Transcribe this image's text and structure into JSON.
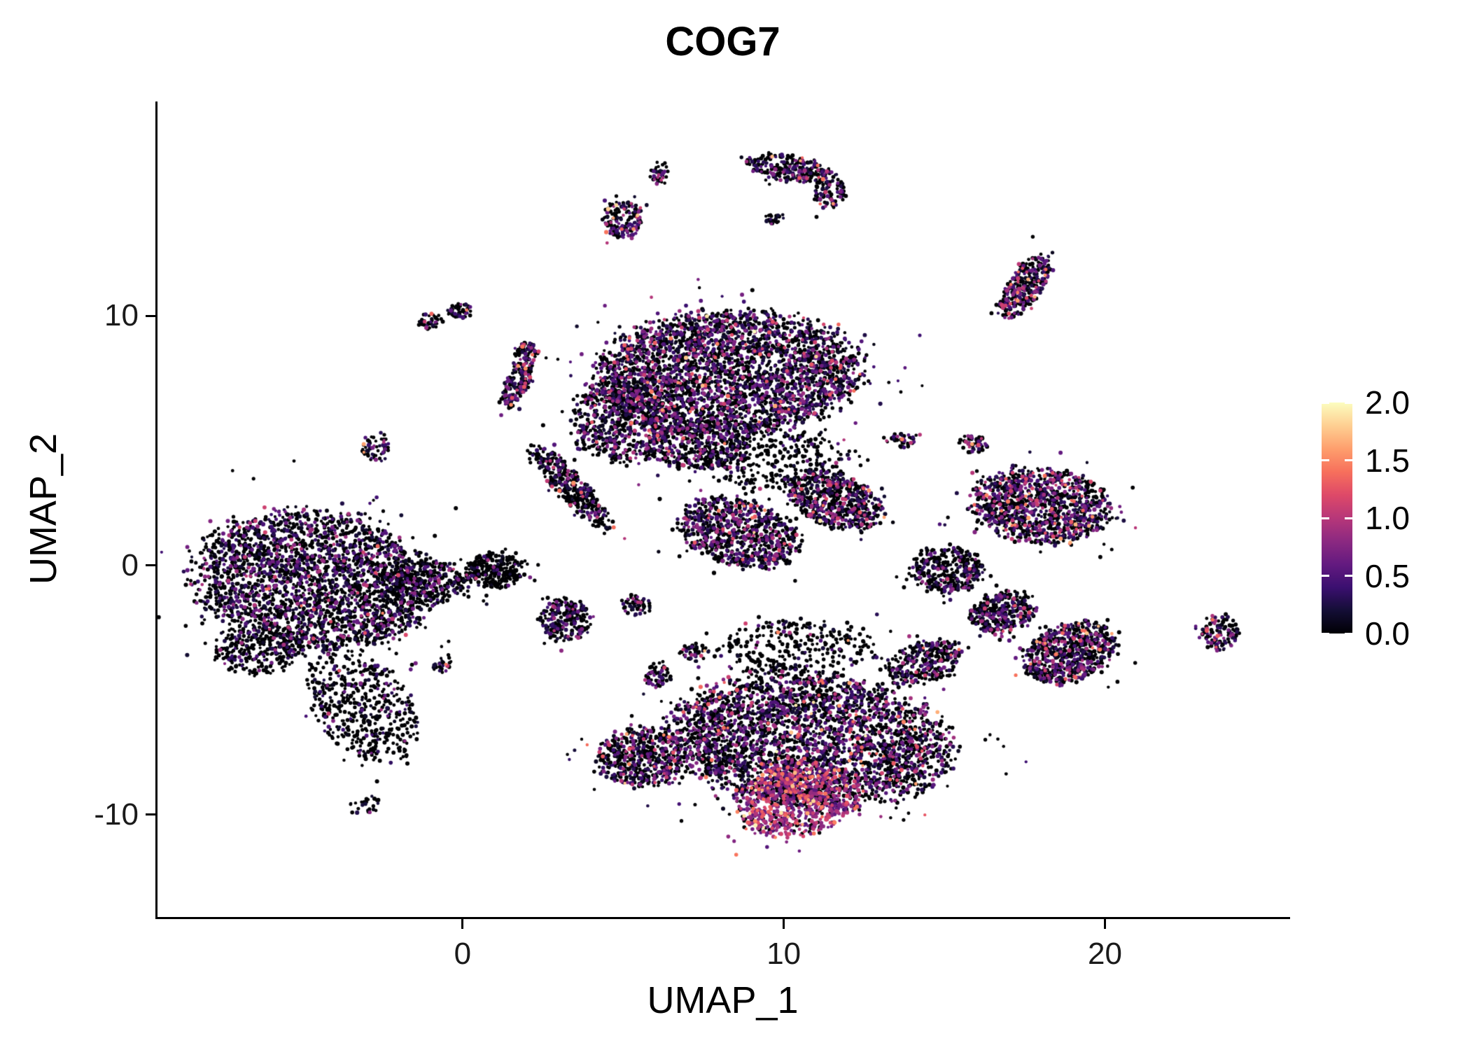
{
  "figure": {
    "background": "#ffffff"
  },
  "chart_data": {
    "type": "scatter",
    "subtype": "umap-feature-plot",
    "title": "COG7",
    "xlabel": "UMAP_1",
    "ylabel": "UMAP_2",
    "xlim": [
      -9.5,
      25.7
    ],
    "ylim": [
      -14.1,
      18.6
    ],
    "x_ticks": [
      {
        "value": 0,
        "label": "0"
      },
      {
        "value": 10,
        "label": "10"
      },
      {
        "value": 20,
        "label": "20"
      }
    ],
    "y_ticks": [
      {
        "value": 10,
        "label": "10"
      },
      {
        "value": 0,
        "label": "0"
      },
      {
        "value": -10,
        "label": "-10"
      }
    ],
    "point_radius_px": 2.5,
    "color_limits": [
      0.0,
      2.0
    ],
    "colorbar": {
      "ticks": [
        {
          "value": 2.0,
          "label": "2.0"
        },
        {
          "value": 1.5,
          "label": "1.5"
        },
        {
          "value": 1.0,
          "label": "1.0"
        },
        {
          "value": 0.5,
          "label": "0.5"
        },
        {
          "value": 0.0,
          "label": "0.0"
        }
      ]
    },
    "colormap": [
      [
        0.0,
        "#000004"
      ],
      [
        0.1,
        "#140e36"
      ],
      [
        0.2,
        "#3b0f70"
      ],
      [
        0.3,
        "#641a80"
      ],
      [
        0.4,
        "#8c2981"
      ],
      [
        0.5,
        "#b73779"
      ],
      [
        0.6,
        "#de4968"
      ],
      [
        0.7,
        "#f7705c"
      ],
      [
        0.8,
        "#fe9f6d"
      ],
      [
        0.9,
        "#fecf92"
      ],
      [
        1.0,
        "#fcfdbf"
      ]
    ],
    "cluster_fields": [
      "n",
      "cx",
      "cy",
      "rx",
      "ry",
      "rot_deg",
      "p_zero",
      "expr_scale",
      "expr_base"
    ],
    "clusters": [
      [
        2600,
        -4.6,
        -0.6,
        3.7,
        2.7,
        -10,
        0.6,
        0.5,
        0
      ],
      [
        500,
        -3.1,
        -5.6,
        1.5,
        2.3,
        25,
        0.72,
        0.45,
        0
      ],
      [
        260,
        -6.4,
        -3.4,
        1.3,
        1.0,
        0,
        0.75,
        0.4,
        0
      ],
      [
        300,
        -1.3,
        -0.7,
        1.3,
        0.9,
        0,
        0.8,
        0.4,
        0
      ],
      [
        280,
        1.0,
        -0.2,
        0.9,
        0.7,
        0,
        0.8,
        0.35,
        0
      ],
      [
        3200,
        8.3,
        7.7,
        4.1,
        2.4,
        4,
        0.48,
        0.55,
        0
      ],
      [
        600,
        4.9,
        5.8,
        1.5,
        1.7,
        0,
        0.52,
        0.55,
        0
      ],
      [
        380,
        3.4,
        3.1,
        0.5,
        2.0,
        35,
        0.62,
        0.5,
        0
      ],
      [
        400,
        7.3,
        4.8,
        1.6,
        1.0,
        0,
        0.55,
        0.55,
        0
      ],
      [
        350,
        9.6,
        4.3,
        2.3,
        1.2,
        0,
        0.82,
        0.45,
        0
      ],
      [
        800,
        8.6,
        1.3,
        1.9,
        1.3,
        -20,
        0.5,
        0.55,
        0
      ],
      [
        600,
        11.6,
        2.6,
        1.6,
        1.0,
        -30,
        0.5,
        0.6,
        0
      ],
      [
        3200,
        10.8,
        -7.0,
        4.3,
        2.6,
        -8,
        0.52,
        0.6,
        0
      ],
      [
        800,
        10.4,
        -9.4,
        1.9,
        1.4,
        15,
        0.22,
        0.55,
        0.45
      ],
      [
        500,
        5.6,
        -7.7,
        1.4,
        1.2,
        0,
        0.55,
        0.65,
        0
      ],
      [
        300,
        14.4,
        -3.9,
        1.3,
        0.8,
        30,
        0.6,
        0.5,
        0
      ],
      [
        300,
        10.5,
        -3.3,
        2.5,
        1.1,
        0,
        0.85,
        0.5,
        0
      ],
      [
        1100,
        18.0,
        2.4,
        2.1,
        1.5,
        -10,
        0.42,
        0.65,
        0
      ],
      [
        350,
        15.1,
        -0.2,
        1.1,
        0.9,
        0,
        0.68,
        0.45,
        0
      ],
      [
        350,
        16.8,
        -1.9,
        1.0,
        0.8,
        20,
        0.58,
        0.55,
        0
      ],
      [
        700,
        18.9,
        -3.5,
        1.5,
        1.1,
        30,
        0.5,
        0.6,
        0
      ],
      [
        120,
        23.6,
        -2.7,
        0.55,
        0.75,
        0,
        0.5,
        0.7,
        0
      ],
      [
        320,
        17.5,
        11.2,
        0.55,
        1.4,
        -25,
        0.45,
        0.65,
        0
      ],
      [
        40,
        6.1,
        15.7,
        0.3,
        0.5,
        0,
        0.5,
        0.55,
        0
      ],
      [
        170,
        5.0,
        13.9,
        0.6,
        0.8,
        0,
        0.5,
        0.6,
        0
      ],
      [
        260,
        10.2,
        15.9,
        1.3,
        0.5,
        -12,
        0.55,
        0.6,
        0
      ],
      [
        90,
        11.4,
        15.0,
        0.5,
        0.7,
        0,
        0.55,
        0.6,
        0
      ],
      [
        25,
        9.7,
        13.9,
        0.3,
        0.25,
        0,
        0.7,
        0.5,
        0
      ],
      [
        45,
        -1.0,
        9.8,
        0.4,
        0.3,
        15,
        0.55,
        0.55,
        0
      ],
      [
        45,
        -0.1,
        10.2,
        0.4,
        0.3,
        0,
        0.55,
        0.55,
        0
      ],
      [
        60,
        2.0,
        8.6,
        0.4,
        0.35,
        0,
        0.55,
        0.6,
        0
      ],
      [
        170,
        1.7,
        7.3,
        0.35,
        1.1,
        -20,
        0.5,
        0.65,
        0
      ],
      [
        60,
        -2.7,
        4.7,
        0.45,
        0.55,
        0,
        0.5,
        0.6,
        0
      ],
      [
        240,
        3.2,
        -2.2,
        0.75,
        0.85,
        0,
        0.55,
        0.6,
        0
      ],
      [
        50,
        5.4,
        -1.6,
        0.45,
        0.4,
        0,
        0.6,
        0.5,
        0
      ],
      [
        60,
        6.1,
        -4.4,
        0.4,
        0.55,
        0,
        0.55,
        0.6,
        0
      ],
      [
        30,
        -0.6,
        -4.0,
        0.35,
        0.3,
        0,
        0.6,
        0.5,
        0
      ],
      [
        40,
        13.6,
        5.0,
        0.55,
        0.3,
        0,
        0.55,
        0.55,
        0
      ],
      [
        50,
        15.9,
        4.9,
        0.5,
        0.35,
        0,
        0.5,
        0.6,
        0
      ],
      [
        50,
        7.2,
        -3.5,
        0.45,
        0.4,
        0,
        0.6,
        0.55,
        0
      ],
      [
        25,
        -3.1,
        -9.6,
        0.5,
        0.4,
        20,
        0.7,
        0.4,
        0
      ]
    ],
    "random_seed": 42
  }
}
